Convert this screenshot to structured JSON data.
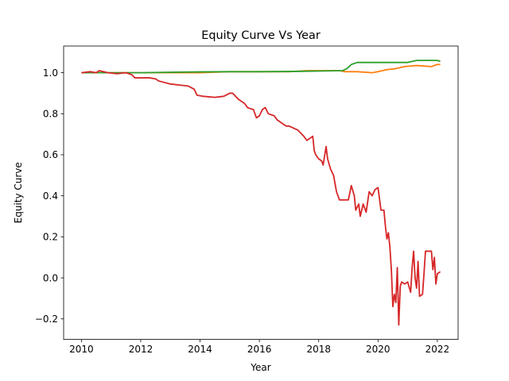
{
  "chart_data": {
    "type": "line",
    "title": "Equity Curve Vs Year",
    "xlabel": "Year",
    "ylabel": "Equity Curve",
    "xlim": [
      2009.4,
      2022.7
    ],
    "ylim": [
      -0.3,
      1.13
    ],
    "xticks": [
      2010,
      2012,
      2014,
      2016,
      2018,
      2020,
      2022
    ],
    "yticks": [
      -0.2,
      0.0,
      0.2,
      0.4,
      0.6,
      0.8,
      1.0
    ],
    "ytick_labels": [
      "−0.2",
      "0.0",
      "0.2",
      "0.4",
      "0.6",
      "0.8",
      "1.0"
    ],
    "grid": false,
    "legend": "none",
    "series": [
      {
        "color": "#ff7f0e",
        "x": [
          2010.0,
          2011.0,
          2012.0,
          2013.0,
          2014.0,
          2015.0,
          2016.0,
          2017.0,
          2017.6,
          2018.0,
          2018.7,
          2018.9,
          2019.3,
          2019.8,
          2020.0,
          2020.3,
          2020.6,
          2020.9,
          2021.3,
          2021.8,
          2022.0,
          2022.1
        ],
        "y": [
          1.0,
          1.0,
          1.0,
          1.0,
          1.0,
          1.005,
          1.005,
          1.005,
          1.01,
          1.01,
          1.01,
          1.005,
          1.005,
          1.0,
          1.005,
          1.015,
          1.02,
          1.03,
          1.035,
          1.03,
          1.04,
          1.04
        ]
      },
      {
        "color": "#2ca02c",
        "x": [
          2010.0,
          2011.0,
          2012.0,
          2013.0,
          2014.0,
          2015.0,
          2016.0,
          2017.0,
          2018.0,
          2018.8,
          2018.95,
          2019.1,
          2019.3,
          2019.6,
          2020.0,
          2020.5,
          2021.0,
          2021.3,
          2021.6,
          2022.0,
          2022.1
        ],
        "y": [
          1.0,
          1.0,
          1.0,
          1.002,
          1.004,
          1.005,
          1.005,
          1.006,
          1.008,
          1.01,
          1.02,
          1.04,
          1.05,
          1.05,
          1.05,
          1.05,
          1.05,
          1.06,
          1.06,
          1.06,
          1.055
        ]
      },
      {
        "color": "#d62728",
        "x": [
          2010.0,
          2010.3,
          2010.5,
          2010.6,
          2010.9,
          2011.2,
          2011.5,
          2011.7,
          2011.8,
          2012.1,
          2012.3,
          2012.5,
          2012.6,
          2013.0,
          2013.3,
          2013.6,
          2013.8,
          2013.9,
          2014.1,
          2014.5,
          2014.8,
          2015.0,
          2015.1,
          2015.3,
          2015.5,
          2015.6,
          2015.8,
          2015.9,
          2016.0,
          2016.1,
          2016.2,
          2016.3,
          2016.5,
          2016.6,
          2016.8,
          2016.9,
          2017.0,
          2017.3,
          2017.5,
          2017.6,
          2017.7,
          2017.8,
          2017.85,
          2017.9,
          2018.0,
          2018.1,
          2018.15,
          2018.25,
          2018.3,
          2018.4,
          2018.5,
          2018.6,
          2018.7,
          2018.8,
          2018.9,
          2019.0,
          2019.1,
          2019.2,
          2019.25,
          2019.35,
          2019.4,
          2019.5,
          2019.6,
          2019.7,
          2019.8,
          2019.9,
          2020.0,
          2020.1,
          2020.2,
          2020.25,
          2020.3,
          2020.35,
          2020.4,
          2020.45,
          2020.5,
          2020.55,
          2020.6,
          2020.65,
          2020.7,
          2020.75,
          2020.8,
          2020.9,
          2021.0,
          2021.1,
          2021.15,
          2021.2,
          2021.25,
          2021.3,
          2021.35,
          2021.4,
          2021.5,
          2021.55,
          2021.6,
          2021.7,
          2021.8,
          2021.85,
          2021.9,
          2021.95,
          2022.0,
          2022.1
        ],
        "y": [
          1.0,
          1.005,
          1.0,
          1.01,
          1.0,
          0.995,
          1.0,
          0.99,
          0.975,
          0.975,
          0.975,
          0.97,
          0.96,
          0.945,
          0.94,
          0.935,
          0.92,
          0.89,
          0.885,
          0.88,
          0.885,
          0.9,
          0.9,
          0.87,
          0.85,
          0.83,
          0.82,
          0.78,
          0.79,
          0.82,
          0.83,
          0.8,
          0.79,
          0.77,
          0.75,
          0.74,
          0.74,
          0.72,
          0.69,
          0.67,
          0.68,
          0.69,
          0.62,
          0.6,
          0.58,
          0.57,
          0.55,
          0.64,
          0.58,
          0.53,
          0.5,
          0.42,
          0.38,
          0.38,
          0.38,
          0.38,
          0.45,
          0.4,
          0.33,
          0.36,
          0.3,
          0.36,
          0.32,
          0.42,
          0.4,
          0.43,
          0.44,
          0.33,
          0.33,
          0.25,
          0.19,
          0.22,
          0.15,
          0.04,
          -0.14,
          -0.08,
          -0.12,
          0.05,
          -0.23,
          -0.04,
          -0.02,
          -0.03,
          -0.02,
          -0.07,
          0.05,
          0.13,
          0.0,
          -0.05,
          0.08,
          -0.09,
          -0.08,
          0.02,
          0.13,
          0.13,
          0.13,
          0.04,
          0.1,
          -0.03,
          0.02,
          0.03
        ]
      }
    ]
  }
}
